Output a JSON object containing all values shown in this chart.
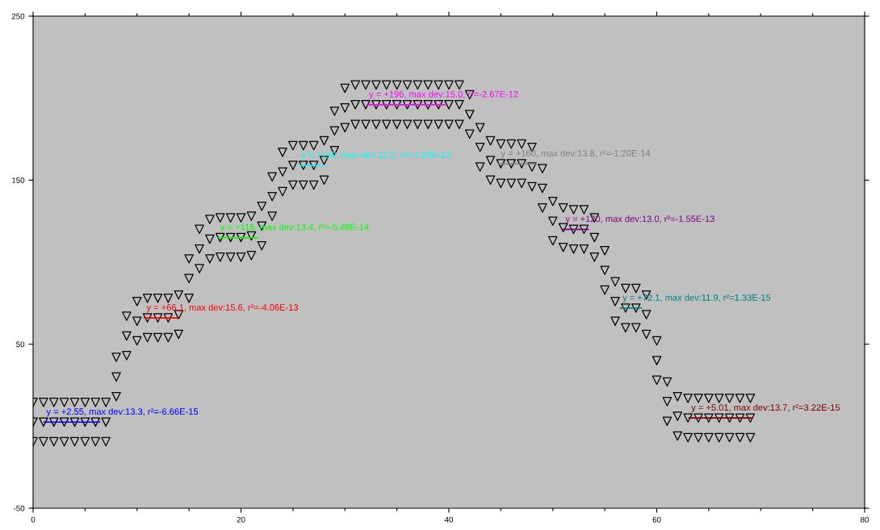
{
  "chart_data": {
    "type": "scatter",
    "marker": "triangle",
    "grid": false,
    "legend": false,
    "xlim": [
      0,
      80
    ],
    "ylim": [
      -50,
      250
    ],
    "xticks": [
      0,
      {
        "value": 5,
        "label": null
      },
      {
        "value": 10,
        "label": null
      },
      {
        "value": 15,
        "label": null
      },
      20,
      {
        "value": 25,
        "label": null
      },
      {
        "value": 30,
        "label": null
      },
      {
        "value": 35,
        "label": null
      },
      40,
      {
        "value": 45,
        "label": null
      },
      {
        "value": 50,
        "label": null
      },
      {
        "value": 55,
        "label": null
      },
      60,
      {
        "value": 65,
        "label": null
      },
      {
        "value": 70,
        "label": null
      },
      {
        "value": 75,
        "label": null
      },
      80
    ],
    "yticks": [
      -50,
      50,
      150,
      250
    ],
    "series": [
      {
        "color": "#000000",
        "x": [
          0,
          1,
          2,
          3,
          4,
          5,
          6,
          7,
          8,
          9,
          10,
          11,
          12,
          13,
          14,
          15,
          16,
          17,
          18,
          19,
          20,
          21,
          22,
          23,
          24,
          25,
          26,
          27,
          28,
          29,
          30,
          31,
          32,
          33,
          34,
          35,
          36,
          37,
          38,
          39,
          40,
          41,
          42,
          43,
          44,
          45,
          46,
          47,
          48,
          49,
          50,
          51,
          52,
          53,
          54,
          55,
          56,
          57,
          58,
          59,
          60,
          61,
          62,
          63,
          64,
          65,
          66,
          67,
          68,
          69
        ],
        "values": [
          2.5,
          2.5,
          2.5,
          2.5,
          2.5,
          2.5,
          2.5,
          2.5,
          30,
          55,
          64,
          66,
          66,
          66,
          68,
          90,
          108,
          114,
          115,
          115,
          115,
          116,
          122,
          140,
          155,
          159,
          159,
          159,
          162,
          180,
          194,
          196,
          196,
          196,
          196,
          196,
          196,
          196,
          196,
          196,
          196,
          196,
          190,
          170,
          162,
          160,
          160,
          160,
          158,
          145,
          125,
          121,
          120,
          120,
          115,
          95,
          76,
          72,
          72,
          68,
          40,
          15,
          6,
          5,
          5,
          5,
          5,
          5,
          5,
          5
        ]
      },
      {
        "color": "#000000",
        "x": [
          0,
          1,
          2,
          3,
          4,
          5,
          6,
          7,
          8,
          9,
          10,
          11,
          12,
          13,
          14,
          15,
          16,
          17,
          18,
          19,
          20,
          21,
          22,
          23,
          24,
          25,
          26,
          27,
          28,
          29,
          30,
          31,
          32,
          33,
          34,
          35,
          36,
          37,
          38,
          39,
          40,
          41,
          42,
          43,
          44,
          45,
          46,
          47,
          48,
          49,
          50,
          51,
          52,
          53,
          54,
          55,
          56,
          57,
          58,
          59,
          60,
          61,
          62,
          63,
          64,
          65,
          66,
          67,
          68,
          69
        ],
        "values": [
          14.5,
          14.5,
          14.5,
          14.5,
          14.5,
          14.5,
          14.5,
          14.5,
          42,
          67,
          76,
          78,
          78,
          78,
          80,
          102,
          120,
          126,
          127,
          127,
          127,
          128,
          134,
          152,
          167,
          171,
          171,
          171,
          174,
          192,
          206,
          208,
          208,
          208,
          208,
          208,
          208,
          208,
          208,
          208,
          208,
          208,
          202,
          182,
          174,
          172,
          172,
          172,
          170,
          157,
          137,
          133,
          132,
          132,
          127,
          107,
          88,
          84,
          84,
          80,
          52,
          27,
          18,
          17,
          17,
          17,
          17,
          17,
          17,
          17
        ]
      },
      {
        "color": "#000000",
        "x": [
          0,
          1,
          2,
          3,
          4,
          5,
          6,
          7,
          8,
          9,
          10,
          11,
          12,
          13,
          14,
          15,
          16,
          17,
          18,
          19,
          20,
          21,
          22,
          23,
          24,
          25,
          26,
          27,
          28,
          29,
          30,
          31,
          32,
          33,
          34,
          35,
          36,
          37,
          38,
          39,
          40,
          41,
          42,
          43,
          44,
          45,
          46,
          47,
          48,
          49,
          50,
          51,
          52,
          53,
          54,
          55,
          56,
          57,
          58,
          59,
          60,
          61,
          62,
          63,
          64,
          65,
          66,
          67,
          68,
          69
        ],
        "values": [
          -9.5,
          -9.5,
          -9.5,
          -9.5,
          -9.5,
          -9.5,
          -9.5,
          -9.5,
          18,
          43,
          52,
          54,
          54,
          54,
          56,
          78,
          96,
          102,
          103,
          103,
          103,
          104,
          110,
          128,
          143,
          147,
          147,
          147,
          150,
          168,
          182,
          184,
          184,
          184,
          184,
          184,
          184,
          184,
          184,
          184,
          184,
          184,
          178,
          158,
          150,
          148,
          148,
          148,
          146,
          133,
          113,
          109,
          108,
          108,
          103,
          83,
          64,
          60,
          60,
          56,
          28,
          3,
          -6,
          -7,
          -7,
          -7,
          -7,
          -7,
          -7,
          -7
        ]
      },
      {
        "type": "line",
        "color": "#0000ff",
        "x": [
          1.07,
          6.4
        ],
        "values": [
          2.5,
          2.5
        ],
        "marker": "none"
      },
      {
        "type": "line",
        "color": "#ff0000",
        "x": [
          10.7,
          13.85
        ],
        "values": [
          66,
          66
        ],
        "marker": "none"
      },
      {
        "type": "line",
        "color": "#00ff00",
        "x": [
          17.8,
          21.6
        ],
        "values": [
          115,
          115
        ],
        "marker": "none"
      },
      {
        "type": "line",
        "color": "#00ffff",
        "x": [
          25.6,
          28.0
        ],
        "values": [
          159,
          159
        ],
        "marker": "none"
      },
      {
        "type": "line",
        "color": "#ff00ff",
        "x": [
          32.1,
          39.6
        ],
        "values": [
          196,
          196
        ],
        "marker": "none"
      },
      {
        "type": "line",
        "color": "#808080",
        "x": [
          44.8,
          48.4
        ],
        "values": [
          160,
          160
        ],
        "marker": "none"
      },
      {
        "type": "line",
        "color": "#800080",
        "x": [
          51.0,
          53.4
        ],
        "values": [
          120,
          120
        ],
        "marker": "none"
      },
      {
        "type": "line",
        "color": "#008080",
        "x": [
          56.5,
          58.5
        ],
        "values": [
          72,
          72
        ],
        "marker": "none"
      },
      {
        "type": "line",
        "color": "#800000",
        "x": [
          63.1,
          69.2
        ],
        "values": [
          5,
          5
        ],
        "marker": "none"
      }
    ],
    "annotations": [
      {
        "text": "y = +2.55, max dev:13.3, r²=-6.66E-15",
        "x": 1.07,
        "y": 2.5
      },
      {
        "text": "y = +66.1, max dev:15.6, r²=-4.06E-13",
        "x": 10.7,
        "y": 66
      },
      {
        "text": "y = +115, max dev:13.4, r²=-5.88E-14",
        "x": 17.8,
        "y": 115
      },
      {
        "text": "y = +159, max dev:12.2, r²=-1.83E-12",
        "x": 25.6,
        "y": 159
      },
      {
        "text": "y = +196, max dev:15.0, r²=-2.67E-12",
        "x": 32.1,
        "y": 196
      },
      {
        "text": "y = +160, max dev:13.8, r²=-1.20E-14",
        "x": 44.8,
        "y": 160
      },
      {
        "text": "y = +120, max dev:13.0, r²=-1.55E-13",
        "x": 51.0,
        "y": 120
      },
      {
        "text": "y = +72.1, max dev:11.9, r²=1.33E-15",
        "x": 56.5,
        "y": 72
      },
      {
        "text": "y = +5.01, max dev:13.7, r²=3.22E-15",
        "x": 63.1,
        "y": 5
      }
    ]
  }
}
